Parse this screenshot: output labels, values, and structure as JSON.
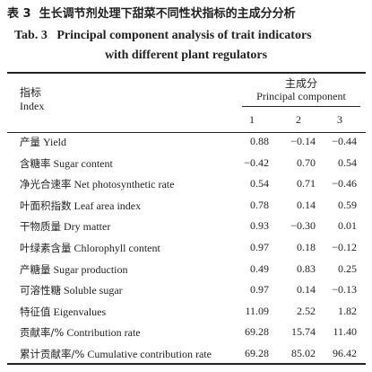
{
  "title": {
    "label_cn": "表 3",
    "text_cn": "生长调节剂处理下甜菜不同性状指标的主成分分析",
    "label_en": "Tab. 3",
    "lines_en": [
      "Principal component analysis of trait indicators",
      "with different plant regulators"
    ]
  },
  "table": {
    "header": {
      "index_cn": "指标",
      "index_en": "Index",
      "group_cn": "主成分",
      "group_en": "Principal component",
      "columns": [
        "1",
        "2",
        "3"
      ]
    },
    "rows": [
      {
        "cn": "产量",
        "en": "Yield",
        "values": [
          "0.88",
          "−0.14",
          "−0.44"
        ]
      },
      {
        "cn": "含糖率",
        "en": "Sugar content",
        "values": [
          "−0.42",
          "0.70",
          "0.54"
        ]
      },
      {
        "cn": "净光合速率",
        "en": "Net photosynthetic rate",
        "values": [
          "0.54",
          "0.71",
          "−0.46"
        ]
      },
      {
        "cn": "叶面积指数",
        "en": "Leaf area index",
        "values": [
          "0.78",
          "0.14",
          "0.59"
        ]
      },
      {
        "cn": "干物质量",
        "en": "Dry matter",
        "values": [
          "0.93",
          "−0.30",
          "0.01"
        ]
      },
      {
        "cn": "叶绿素含量",
        "en": "Chlorophyll content",
        "values": [
          "0.97",
          "0.18",
          "−0.12"
        ]
      },
      {
        "cn": "产糖量",
        "en": "Sugar production",
        "values": [
          "0.49",
          "0.83",
          "0.25"
        ]
      },
      {
        "cn": "可溶性糖",
        "en": "Soluble sugar",
        "values": [
          "0.97",
          "0.14",
          "−0.13"
        ]
      },
      {
        "cn": "特征值",
        "en": "Eigenvalues",
        "values": [
          "11.09",
          "2.52",
          "1.82"
        ]
      },
      {
        "cn": "贡献率/%",
        "en": "Contribution rate",
        "values": [
          "69.28",
          "15.74",
          "11.40"
        ]
      },
      {
        "cn": "累计贡献率/%",
        "en": "Cumulative contribution rate",
        "values": [
          "69.28",
          "85.02",
          "96.42"
        ]
      }
    ]
  }
}
